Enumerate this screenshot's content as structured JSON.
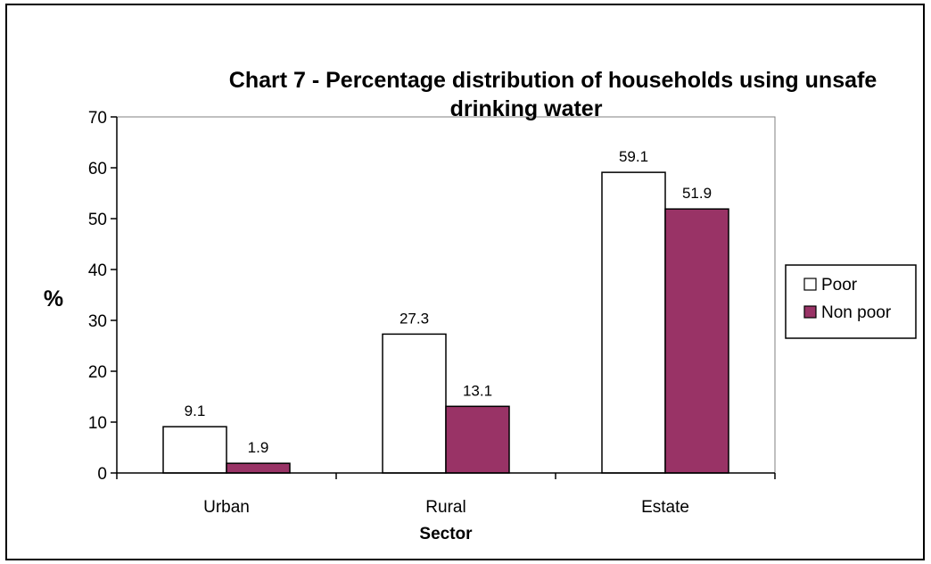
{
  "chart_data": {
    "type": "bar",
    "title": "Chart 7 - Percentage distribution of households using unsafe drinking water",
    "title_lines": [
      "Chart 7 - Percentage distribution of households using unsafe",
      "drinking water"
    ],
    "xlabel": "Sector",
    "ylabel": "%",
    "categories": [
      "Urban",
      "Rural",
      "Estate"
    ],
    "series": [
      {
        "name": "Poor",
        "values": [
          9.1,
          27.3,
          59.1
        ],
        "color": "#ffffff"
      },
      {
        "name": "Non poor",
        "values": [
          1.9,
          13.1,
          51.9
        ],
        "color": "#993366"
      }
    ],
    "ylim": [
      0,
      70
    ],
    "yticks": [
      0,
      10,
      20,
      30,
      40,
      50,
      60,
      70
    ],
    "data_labels": true,
    "grid": false,
    "legend": "right",
    "plot_background": "#ffffff"
  }
}
